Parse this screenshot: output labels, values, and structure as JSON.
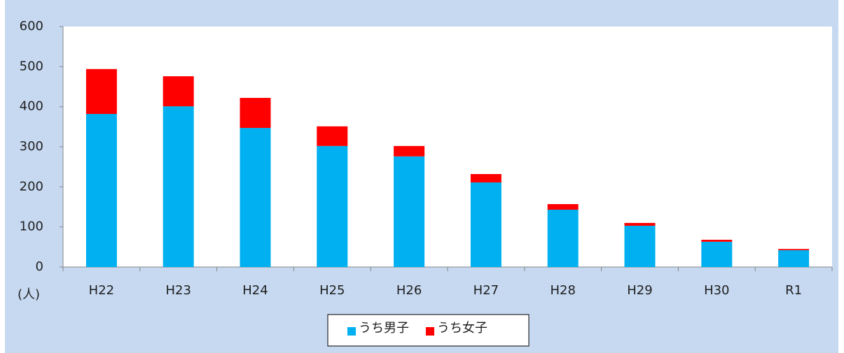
{
  "chart_data": {
    "type": "stacked_bar",
    "y_unit": "(人)",
    "categories": [
      "H22",
      "H23",
      "H24",
      "H25",
      "H26",
      "H27",
      "H28",
      "H29",
      "H30",
      "R1"
    ],
    "series": [
      {
        "name": "うち男子",
        "color": "#00b0f0",
        "values": [
          382,
          401,
          347,
          302,
          276,
          211,
          143,
          103,
          63,
          42
        ]
      },
      {
        "name": "うち女子",
        "color": "#ff0000",
        "values": [
          112,
          75,
          75,
          49,
          26,
          21,
          14,
          7,
          5,
          3
        ]
      }
    ],
    "ylim": [
      0,
      600
    ],
    "yticks": [
      0,
      100,
      200,
      300,
      400,
      500,
      600
    ],
    "grid": false,
    "legend": "bottom"
  }
}
